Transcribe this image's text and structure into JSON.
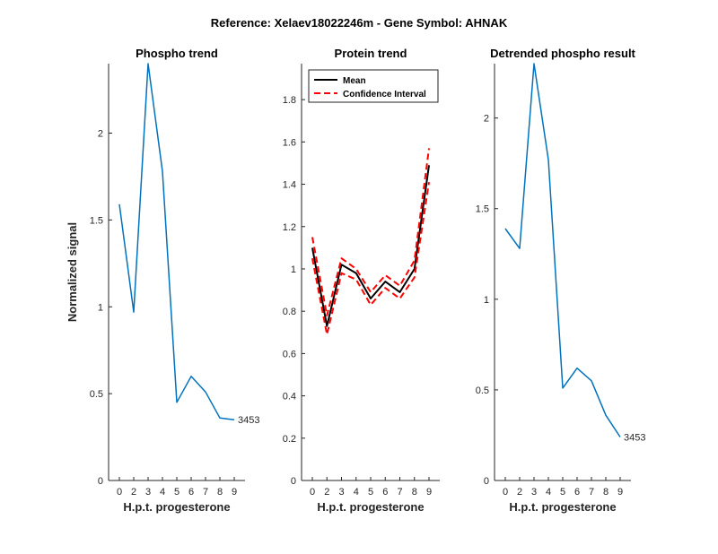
{
  "suptitle": "Reference:  Xelaev18022246m - Gene Symbol:  AHNAK",
  "chart_data": [
    {
      "type": "line",
      "title": "Phospho trend",
      "xlabel": "H.p.t. progesterone",
      "ylabel": "Normalized signal",
      "x_tick_labels": [
        "0",
        "2",
        "3",
        "4",
        "5",
        "6",
        "7",
        "8",
        "9"
      ],
      "y_ticks": [
        0,
        0.5,
        1,
        1.5,
        2
      ],
      "y_tick_labels": [
        "0",
        "0.5",
        "1",
        "1.5",
        "2"
      ],
      "ylim": [
        0,
        2.4
      ],
      "series": [
        {
          "values": [
            1.59,
            0.97,
            2.4,
            1.78,
            0.45,
            0.6,
            0.51,
            0.36,
            0.35
          ],
          "color": "#0072BD"
        }
      ],
      "end_label": "3453"
    },
    {
      "type": "line",
      "title": "Protein trend",
      "xlabel": "H.p.t. progesterone",
      "ylabel": "",
      "x_tick_labels": [
        "0",
        "2",
        "3",
        "4",
        "5",
        "6",
        "7",
        "8",
        "9"
      ],
      "y_ticks": [
        0,
        0.2,
        0.4,
        0.6,
        0.8,
        1,
        1.2,
        1.4,
        1.6,
        1.8
      ],
      "y_tick_labels": [
        "0",
        "0.2",
        "0.4",
        "0.6",
        "0.8",
        "1",
        "1.2",
        "1.4",
        "1.6",
        "1.8"
      ],
      "ylim": [
        0,
        1.97
      ],
      "legend_position": "top-left",
      "series": [
        {
          "name": "Mean",
          "values": [
            1.1,
            0.73,
            1.02,
            0.98,
            0.86,
            0.94,
            0.89,
            1.0,
            1.49
          ],
          "color": "#000000",
          "style": "solid"
        },
        {
          "name": "Confidence Interval",
          "values": [
            1.15,
            0.78,
            1.05,
            1.0,
            0.89,
            0.97,
            0.92,
            1.04,
            1.57
          ],
          "color": "#FF0000",
          "style": "dashed"
        },
        {
          "values": [
            1.05,
            0.69,
            0.98,
            0.95,
            0.83,
            0.91,
            0.86,
            0.96,
            1.41
          ],
          "color": "#FF0000",
          "style": "dashed"
        }
      ]
    },
    {
      "type": "line",
      "title": "Detrended phospho result",
      "xlabel": "H.p.t. progesterone",
      "ylabel": "",
      "x_tick_labels": [
        "0",
        "2",
        "3",
        "4",
        "5",
        "6",
        "7",
        "8",
        "9"
      ],
      "y_ticks": [
        0,
        0.5,
        1,
        1.5,
        2
      ],
      "y_tick_labels": [
        "0",
        "0.5",
        "1",
        "1.5",
        "2"
      ],
      "ylim": [
        0,
        2.3
      ],
      "series": [
        {
          "values": [
            1.39,
            1.28,
            2.3,
            1.77,
            0.51,
            0.62,
            0.55,
            0.36,
            0.24
          ],
          "color": "#0072BD"
        }
      ],
      "end_label": "3453"
    }
  ]
}
